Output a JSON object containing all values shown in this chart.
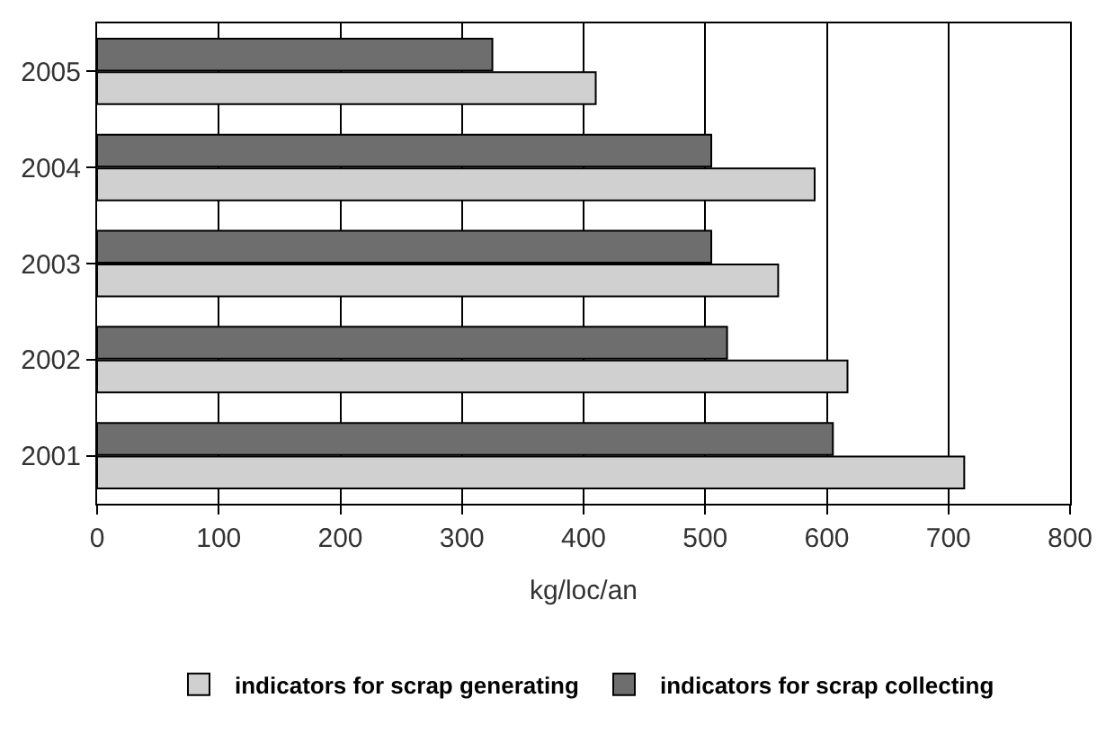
{
  "chart_data": {
    "type": "bar",
    "orientation": "horizontal",
    "xlabel": "kg/loc/an",
    "categories": [
      "2005",
      "2004",
      "2003",
      "2002",
      "2001"
    ],
    "series": [
      {
        "name": "indicators for scrap generating",
        "color": "#d0d0d0",
        "values": [
          410,
          590,
          560,
          617,
          713
        ]
      },
      {
        "name": "indicators for scrap collecting",
        "color": "#6e6e6e",
        "values": [
          325,
          505,
          505,
          518,
          605
        ]
      }
    ],
    "xlim": [
      0,
      800
    ],
    "xticks": [
      0,
      100,
      200,
      300,
      400,
      500,
      600,
      700,
      800
    ],
    "grid": "x",
    "legend": "bottom"
  }
}
